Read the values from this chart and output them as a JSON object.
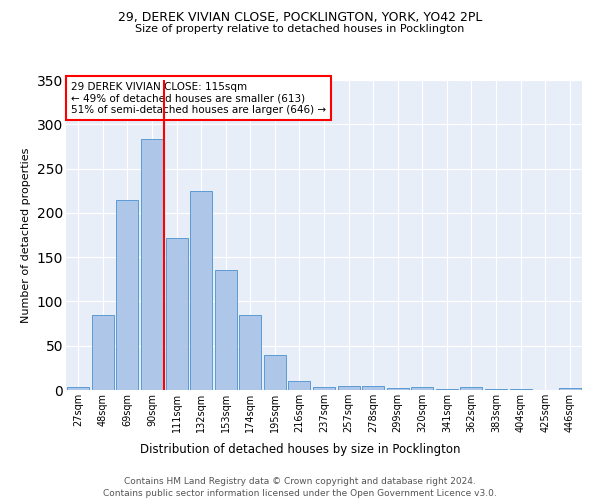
{
  "title1": "29, DEREK VIVIAN CLOSE, POCKLINGTON, YORK, YO42 2PL",
  "title2": "Size of property relative to detached houses in Pocklington",
  "xlabel": "Distribution of detached houses by size in Pocklington",
  "ylabel": "Number of detached properties",
  "categories": [
    "27sqm",
    "48sqm",
    "69sqm",
    "90sqm",
    "111sqm",
    "132sqm",
    "153sqm",
    "174sqm",
    "195sqm",
    "216sqm",
    "237sqm",
    "257sqm",
    "278sqm",
    "299sqm",
    "320sqm",
    "341sqm",
    "362sqm",
    "383sqm",
    "404sqm",
    "425sqm",
    "446sqm"
  ],
  "values": [
    3,
    85,
    215,
    283,
    172,
    225,
    136,
    85,
    40,
    10,
    3,
    5,
    5,
    2,
    3,
    1,
    3,
    1,
    1,
    0,
    2
  ],
  "bar_color": "#aec6e8",
  "bar_edge_color": "#5b9bd5",
  "background_color": "#e8eef8",
  "grid_color": "#ffffff",
  "vline_color": "red",
  "vline_pos": 3.5,
  "annotation_text": "29 DEREK VIVIAN CLOSE: 115sqm\n← 49% of detached houses are smaller (613)\n51% of semi-detached houses are larger (646) →",
  "annotation_box_color": "white",
  "annotation_box_edge": "red",
  "footer1": "Contains HM Land Registry data © Crown copyright and database right 2024.",
  "footer2": "Contains public sector information licensed under the Open Government Licence v3.0.",
  "ylim": [
    0,
    350
  ],
  "yticks": [
    0,
    50,
    100,
    150,
    200,
    250,
    300,
    350
  ]
}
